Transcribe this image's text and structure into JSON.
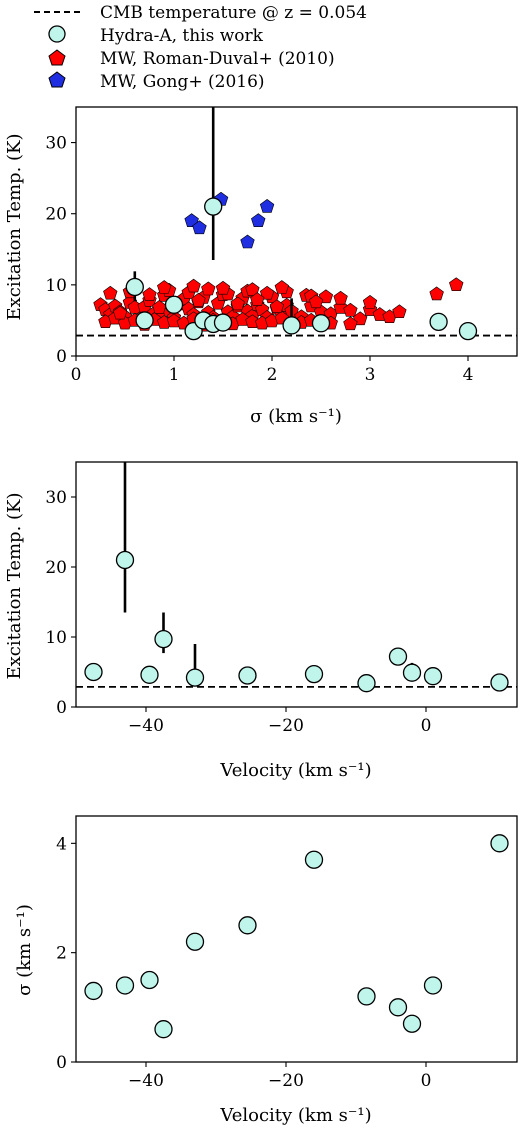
{
  "legend": {
    "entries": [
      {
        "label": "CMB temperature @ z = 0.054",
        "marker": "dashed-line",
        "color": "#000000"
      },
      {
        "label": "Hydra-A, this work",
        "marker": "circle",
        "color": "#bff5ea"
      },
      {
        "label": "MW, Roman-Duval+ (2010)",
        "marker": "pentagon",
        "color": "#ff0000"
      },
      {
        "label": "MW, Gong+ (2016)",
        "marker": "pentagon",
        "color": "#1f2ee0"
      }
    ]
  },
  "colors": {
    "hydra_fill": "#bff5ea",
    "romanduval_fill": "#ff0000",
    "gong_fill": "#1f2ee0",
    "marker_edge": "#000000"
  },
  "chart_data": [
    {
      "type": "scatter",
      "xlabel": "σ (km s⁻¹)",
      "ylabel": "Excitation Temp. (K)",
      "xlim": [
        0,
        4.5
      ],
      "ylim": [
        0,
        35
      ],
      "xticks": [
        0,
        1,
        2,
        3,
        4
      ],
      "yticks": [
        0,
        10,
        20,
        30
      ],
      "reference_line": {
        "name": "CMB temperature @ z = 0.054",
        "y": 2.87,
        "style": "dashed"
      },
      "series": [
        {
          "name": "Hydra-A, this work",
          "marker": "circle",
          "x": [
            0.6,
            0.7,
            1.0,
            1.2,
            1.3,
            1.4,
            1.4,
            1.5,
            2.2,
            2.5,
            3.7,
            4.0
          ],
          "y": [
            9.7,
            5.0,
            7.2,
            3.5,
            5.0,
            4.5,
            21.0,
            4.7,
            4.3,
            4.6,
            4.8,
            3.5
          ],
          "yerr_low": [
            2.0,
            0,
            0,
            0,
            0,
            0,
            7.5,
            0,
            0,
            0,
            0,
            0
          ],
          "yerr_high": [
            2.2,
            0,
            0,
            0,
            0,
            0,
            20.0,
            0,
            3.8,
            0,
            0,
            0
          ]
        },
        {
          "name": "MW, Roman-Duval+ (2010)",
          "marker": "pentagon",
          "x": [
            0.25,
            0.3,
            0.35,
            0.4,
            0.45,
            0.5,
            0.55,
            0.6,
            0.65,
            0.7,
            0.75,
            0.8,
            0.85,
            0.9,
            0.95,
            1.0,
            1.05,
            1.1,
            1.15,
            1.2,
            1.25,
            1.3,
            1.35,
            1.4,
            1.45,
            1.5,
            1.55,
            1.6,
            1.65,
            1.7,
            1.75,
            1.8,
            1.85,
            1.9,
            1.95,
            2.0,
            2.05,
            2.1,
            2.15,
            2.2,
            2.3,
            2.4,
            2.5,
            2.6,
            2.7,
            2.8,
            2.9,
            3.0,
            3.1,
            3.2,
            3.3,
            0.3,
            0.4,
            0.5,
            0.6,
            0.7,
            0.8,
            0.9,
            1.0,
            1.1,
            1.2,
            1.3,
            1.4,
            1.5,
            1.6,
            1.7,
            1.8,
            1.9,
            2.0,
            2.1,
            2.2,
            2.3,
            2.4,
            2.6,
            2.8,
            0.35,
            0.55,
            0.75,
            0.95,
            1.15,
            1.35,
            1.55,
            1.75,
            1.95,
            2.15,
            2.35,
            2.55,
            0.6,
            0.9,
            1.2,
            1.5,
            1.8,
            2.1,
            2.4,
            2.7,
            3.0,
            0.45,
            0.85,
            1.25,
            1.65,
            2.05,
            2.45,
            1.85,
            3.68,
            3.88
          ],
          "y": [
            7.2,
            6.5,
            5.8,
            7.0,
            6.2,
            5.5,
            7.5,
            6.8,
            5.2,
            6.9,
            7.8,
            6.0,
            5.6,
            8.5,
            6.4,
            5.4,
            7.3,
            8.0,
            6.6,
            5.8,
            7.6,
            8.2,
            6.1,
            5.4,
            7.4,
            8.6,
            6.2,
            5.5,
            7.0,
            8.1,
            6.3,
            5.6,
            7.2,
            6.5,
            5.4,
            8.3,
            6.7,
            5.8,
            7.1,
            6.3,
            5.5,
            7.0,
            6.2,
            5.9,
            6.8,
            6.4,
            5.2,
            6.5,
            5.8,
            5.5,
            6.2,
            4.8,
            5.3,
            4.6,
            5.0,
            4.4,
            5.1,
            4.7,
            4.9,
            4.6,
            5.2,
            4.3,
            5.0,
            4.7,
            4.5,
            5.1,
            4.8,
            4.6,
            4.9,
            5.3,
            4.4,
            4.7,
            5.0,
            4.6,
            4.5,
            8.8,
            9.0,
            8.6,
            9.2,
            8.9,
            9.4,
            8.7,
            9.1,
            8.8,
            9.0,
            8.5,
            8.3,
            9.9,
            9.6,
            9.8,
            9.5,
            9.3,
            9.6,
            8.4,
            8.1,
            7.5,
            6.0,
            6.8,
            7.8,
            7.3,
            6.9,
            7.6,
            7.9,
            8.7,
            10.0
          ]
        },
        {
          "name": "MW, Gong+ (2016)",
          "marker": "pentagon",
          "x": [
            1.18,
            1.26,
            1.48,
            1.75,
            1.86,
            1.95
          ],
          "y": [
            19.0,
            18.0,
            22.0,
            16.0,
            19.0,
            21.0
          ]
        }
      ]
    },
    {
      "type": "scatter",
      "xlabel": "Velocity (km s⁻¹)",
      "ylabel": "Excitation Temp. (K)",
      "xlim": [
        -50,
        13
      ],
      "ylim": [
        0,
        35
      ],
      "xticks": [
        -40,
        -20,
        0
      ],
      "yticks": [
        0,
        10,
        20,
        30
      ],
      "reference_line": {
        "name": "CMB temperature @ z = 0.054",
        "y": 2.87,
        "style": "dashed"
      },
      "series": [
        {
          "name": "Hydra-A, this work",
          "marker": "circle",
          "x": [
            -47.5,
            -43,
            -39.5,
            -37.5,
            -33,
            -25.5,
            -16,
            -8.5,
            -4,
            -2,
            1,
            10.5
          ],
          "y": [
            5.0,
            21.0,
            4.6,
            9.7,
            4.2,
            4.5,
            4.7,
            3.4,
            7.2,
            4.9,
            4.4,
            3.5
          ],
          "yerr_low": [
            0,
            7.5,
            0,
            2.0,
            0,
            0,
            0,
            0,
            0,
            0,
            0,
            0
          ],
          "yerr_high": [
            0,
            20.0,
            0,
            3.8,
            4.8,
            0,
            0,
            0,
            0,
            1.4,
            0,
            0
          ]
        }
      ]
    },
    {
      "type": "scatter",
      "xlabel": "Velocity (km s⁻¹)",
      "ylabel": "σ (km s⁻¹)",
      "xlim": [
        -50,
        13
      ],
      "ylim": [
        0,
        4.5
      ],
      "xticks": [
        -40,
        -20,
        0
      ],
      "yticks": [
        0,
        2,
        4
      ],
      "series": [
        {
          "name": "Hydra-A, this work",
          "marker": "circle",
          "x": [
            -47.5,
            -43,
            -39.5,
            -37.5,
            -33,
            -25.5,
            -16,
            -8.5,
            -4,
            -2,
            1,
            10.5
          ],
          "y": [
            1.3,
            1.4,
            1.5,
            0.6,
            2.2,
            2.5,
            3.7,
            1.2,
            1.0,
            0.7,
            1.4,
            4.0
          ]
        }
      ]
    }
  ]
}
